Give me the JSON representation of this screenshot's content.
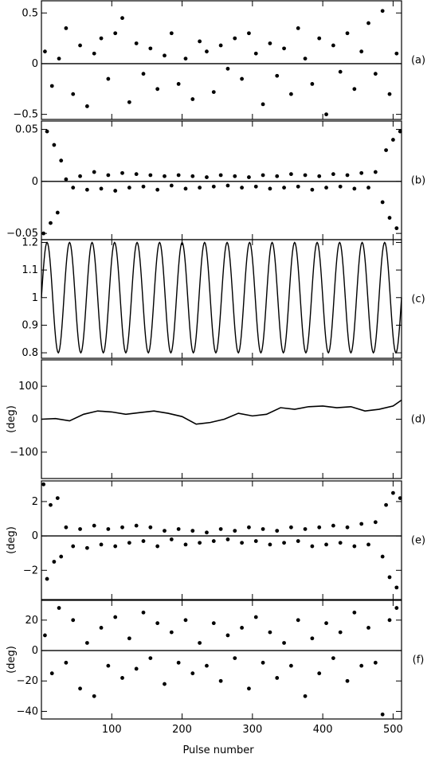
{
  "chart_data": {
    "type": "scatter",
    "xlabel": "Pulse number",
    "xlim": [
      0,
      512
    ],
    "xticks": [
      100,
      200,
      300,
      400,
      500
    ],
    "panels": [
      {
        "label": "(a)",
        "type": "scatter",
        "ylabel": "",
        "ylim": [
          -0.55,
          0.62
        ],
        "yticks": [
          -0.5,
          0,
          0.5
        ],
        "ytick_labels": [
          "−0.5",
          "0",
          "0.5"
        ],
        "reference_line": 0,
        "series": [
          {
            "x": [
              5,
              15,
              25,
              35,
              45,
              55,
              65,
              75,
              85,
              95,
              105,
              115,
              125,
              135,
              145,
              155,
              165,
              175,
              185,
              195,
              205,
              215,
              225,
              235,
              245,
              255,
              265,
              275,
              285,
              295,
              305,
              315,
              325,
              335,
              345,
              355,
              365,
              375,
              385,
              395,
              405,
              415,
              425,
              435,
              445,
              455,
              465,
              475,
              485,
              495,
              505
            ],
            "y": [
              0.12,
              -0.22,
              0.05,
              0.35,
              -0.3,
              0.18,
              -0.42,
              0.1,
              0.25,
              -0.15,
              0.3,
              0.45,
              -0.38,
              0.2,
              -0.1,
              0.15,
              -0.25,
              0.08,
              0.3,
              -0.2,
              0.05,
              -0.35,
              0.22,
              0.12,
              -0.28,
              0.18,
              -0.05,
              0.25,
              -0.15,
              0.3,
              0.1,
              -0.4,
              0.2,
              -0.12,
              0.15,
              -0.3,
              0.35,
              0.05,
              -0.2,
              0.25,
              -0.5,
              0.18,
              -0.08,
              0.3,
              -0.25,
              0.12,
              0.4,
              -0.1,
              0.52,
              -0.3,
              0.1
            ]
          }
        ]
      },
      {
        "label": "(b)",
        "type": "scatter",
        "ylabel": "",
        "ylim": [
          -0.056,
          0.058
        ],
        "yticks": [
          -0.05,
          0,
          0.05
        ],
        "ytick_labels": [
          "−0.05",
          "0",
          "0.05"
        ],
        "reference_line": 0,
        "series": [
          {
            "x": [
              3,
              8,
              13,
              18,
              23,
              28,
              35,
              45,
              55,
              65,
              75,
              85,
              95,
              105,
              115,
              125,
              135,
              145,
              155,
              165,
              175,
              185,
              195,
              205,
              215,
              225,
              235,
              245,
              255,
              265,
              275,
              285,
              295,
              305,
              315,
              325,
              335,
              345,
              355,
              365,
              375,
              385,
              395,
              405,
              415,
              425,
              435,
              445,
              455,
              465,
              475,
              485,
              490,
              495,
              500,
              505,
              510
            ],
            "y": [
              -0.05,
              0.048,
              -0.04,
              0.035,
              -0.03,
              0.02,
              0.002,
              -0.006,
              0.005,
              -0.008,
              0.009,
              -0.007,
              0.006,
              -0.009,
              0.008,
              -0.006,
              0.007,
              -0.005,
              0.006,
              -0.008,
              0.005,
              -0.004,
              0.006,
              -0.007,
              0.005,
              -0.006,
              0.004,
              -0.005,
              0.006,
              -0.004,
              0.005,
              -0.006,
              0.004,
              -0.005,
              0.006,
              -0.007,
              0.005,
              -0.006,
              0.007,
              -0.005,
              0.006,
              -0.008,
              0.005,
              -0.006,
              0.007,
              -0.005,
              0.006,
              -0.007,
              0.008,
              -0.006,
              0.009,
              -0.02,
              0.03,
              -0.035,
              0.04,
              -0.045,
              0.048
            ]
          }
        ]
      },
      {
        "label": "(c)",
        "type": "line",
        "ylabel": "",
        "ylim": [
          0.78,
          1.21
        ],
        "yticks": [
          0.8,
          0.9,
          1,
          1.1,
          1.2
        ],
        "ytick_labels": [
          "0.8",
          "0.9",
          "1",
          "1.1",
          "1.2"
        ],
        "function": {
          "kind": "sinusoid",
          "offset": 1.0,
          "amplitude": 0.2,
          "cycles_per_pulse": 0.03125
        }
      },
      {
        "label": "(d)",
        "type": "line",
        "ylabel": "(deg)",
        "ylim": [
          -180,
          180
        ],
        "yticks": [
          -100,
          0,
          100
        ],
        "ytick_labels": [
          "−100",
          "0",
          "100"
        ],
        "series": [
          {
            "x": [
              0,
              20,
              40,
              60,
              80,
              100,
              120,
              140,
              160,
              180,
              200,
              220,
              240,
              260,
              280,
              300,
              320,
              340,
              360,
              380,
              400,
              420,
              440,
              460,
              480,
              500,
              512
            ],
            "y": [
              0,
              2,
              -5,
              15,
              25,
              22,
              15,
              20,
              25,
              18,
              8,
              -15,
              -10,
              0,
              18,
              10,
              15,
              35,
              30,
              38,
              40,
              35,
              38,
              25,
              30,
              40,
              58
            ]
          }
        ]
      },
      {
        "label": "(e)",
        "type": "scatter",
        "ylabel": "(deg)",
        "ylim": [
          -3.7,
          3.2
        ],
        "yticks": [
          -2,
          0,
          2
        ],
        "ytick_labels": [
          "−2",
          "0",
          "2"
        ],
        "reference_line": 0,
        "series": [
          {
            "x": [
              3,
              8,
              13,
              18,
              23,
              28,
              35,
              45,
              55,
              65,
              75,
              85,
              95,
              105,
              115,
              125,
              135,
              145,
              155,
              165,
              175,
              185,
              195,
              205,
              215,
              225,
              235,
              245,
              255,
              265,
              275,
              285,
              295,
              305,
              315,
              325,
              335,
              345,
              355,
              365,
              375,
              385,
              395,
              405,
              415,
              425,
              435,
              445,
              455,
              465,
              475,
              485,
              490,
              495,
              500,
              505,
              510
            ],
            "y": [
              3,
              -2.5,
              1.8,
              -1.5,
              2.2,
              -1.2,
              0.5,
              -0.6,
              0.4,
              -0.7,
              0.6,
              -0.5,
              0.4,
              -0.6,
              0.5,
              -0.4,
              0.6,
              -0.3,
              0.5,
              -0.6,
              0.3,
              -0.2,
              0.4,
              -0.5,
              0.3,
              -0.4,
              0.2,
              -0.3,
              0.4,
              -0.2,
              0.3,
              -0.4,
              0.5,
              -0.3,
              0.4,
              -0.5,
              0.3,
              -0.4,
              0.5,
              -0.3,
              0.4,
              -0.6,
              0.5,
              -0.5,
              0.6,
              -0.4,
              0.5,
              -0.6,
              0.7,
              -0.5,
              0.8,
              -1.2,
              1.8,
              -2.4,
              2.5,
              -3,
              2.2
            ]
          }
        ]
      },
      {
        "label": "(f)",
        "type": "scatter",
        "ylabel": "(deg)",
        "ylim": [
          -45,
          33
        ],
        "yticks": [
          -40,
          -20,
          0,
          20
        ],
        "ytick_labels": [
          "−40",
          "−20",
          "0",
          "20"
        ],
        "reference_line": 0,
        "series": [
          {
            "x": [
              5,
              15,
              25,
              35,
              45,
              55,
              65,
              75,
              85,
              95,
              105,
              115,
              125,
              135,
              145,
              155,
              165,
              175,
              185,
              195,
              205,
              215,
              225,
              235,
              245,
              255,
              265,
              275,
              285,
              295,
              305,
              315,
              325,
              335,
              345,
              355,
              365,
              375,
              385,
              395,
              405,
              415,
              425,
              435,
              445,
              455,
              465,
              475,
              485,
              495,
              505
            ],
            "y": [
              10,
              -15,
              28,
              -8,
              20,
              -25,
              5,
              -30,
              15,
              -10,
              22,
              -18,
              8,
              -12,
              25,
              -5,
              18,
              -22,
              12,
              -8,
              20,
              -15,
              5,
              -10,
              18,
              -20,
              10,
              -5,
              15,
              -25,
              22,
              -8,
              12,
              -18,
              5,
              -10,
              20,
              -30,
              8,
              -15,
              18,
              -5,
              12,
              -20,
              25,
              -10,
              15,
              -8,
              -42,
              20,
              28
            ]
          }
        ]
      }
    ]
  }
}
